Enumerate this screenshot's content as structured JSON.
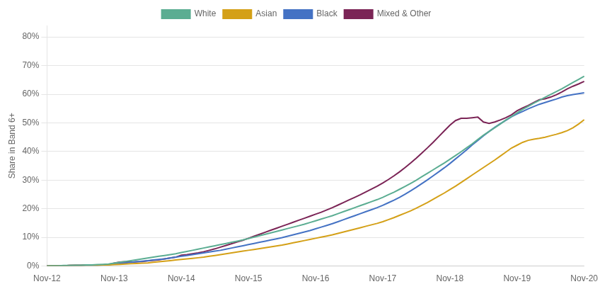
{
  "chart_data": {
    "type": "line",
    "ylabel": "Share in Band 6+",
    "categories": [
      "Nov-12",
      null,
      null,
      null,
      null,
      null,
      null,
      null,
      null,
      null,
      null,
      null,
      "Nov-13",
      null,
      null,
      null,
      null,
      null,
      null,
      null,
      null,
      null,
      null,
      null,
      "Nov-14",
      null,
      null,
      null,
      null,
      null,
      null,
      null,
      null,
      null,
      null,
      null,
      "Nov-15",
      null,
      null,
      null,
      null,
      null,
      null,
      null,
      null,
      null,
      null,
      null,
      "Nov-16",
      null,
      null,
      null,
      null,
      null,
      null,
      null,
      null,
      null,
      null,
      null,
      "Nov-17",
      null,
      null,
      null,
      null,
      null,
      null,
      null,
      null,
      null,
      null,
      null,
      "Nov-18",
      null,
      null,
      null,
      null,
      null,
      null,
      null,
      null,
      null,
      null,
      null,
      "Nov-19",
      null,
      null,
      null,
      null,
      null,
      null,
      null,
      null,
      null,
      null,
      null,
      "Nov-20"
    ],
    "ylim": [
      0,
      0.84
    ],
    "yticks": [
      {
        "value": 0.0,
        "label": "0%"
      },
      {
        "value": 0.1,
        "label": "10%"
      },
      {
        "value": 0.2,
        "label": "20%"
      },
      {
        "value": 0.3,
        "label": "30%"
      },
      {
        "value": 0.4,
        "label": "40%"
      },
      {
        "value": 0.5,
        "label": "50%"
      },
      {
        "value": 0.6,
        "label": "60%"
      },
      {
        "value": 0.7,
        "label": "70%"
      },
      {
        "value": 0.8,
        "label": "80%"
      }
    ],
    "grid": "y",
    "legend": "top",
    "series": [
      {
        "name": "White",
        "color": "#5BAD92",
        "values": [
          0.0,
          0.001,
          0.001,
          0.002,
          0.002,
          0.003,
          0.003,
          0.004,
          0.004,
          0.005,
          0.006,
          0.007,
          0.01,
          0.013,
          0.016,
          0.019,
          0.022,
          0.025,
          0.028,
          0.031,
          0.034,
          0.037,
          0.04,
          0.043,
          0.047,
          0.051,
          0.055,
          0.059,
          0.063,
          0.067,
          0.071,
          0.075,
          0.079,
          0.083,
          0.087,
          0.091,
          0.096,
          0.101,
          0.106,
          0.111,
          0.116,
          0.121,
          0.126,
          0.131,
          0.136,
          0.141,
          0.146,
          0.152,
          0.158,
          0.164,
          0.17,
          0.176,
          0.183,
          0.19,
          0.197,
          0.204,
          0.211,
          0.218,
          0.225,
          0.232,
          0.24,
          0.249,
          0.258,
          0.268,
          0.278,
          0.289,
          0.3,
          0.312,
          0.324,
          0.336,
          0.348,
          0.36,
          0.373,
          0.386,
          0.399,
          0.413,
          0.427,
          0.442,
          0.457,
          0.47,
          0.483,
          0.496,
          0.51,
          0.522,
          0.535,
          0.547,
          0.558,
          0.569,
          0.579,
          0.589,
          0.599,
          0.609,
          0.619,
          0.63,
          0.641,
          0.652,
          0.663
        ]
      },
      {
        "name": "Asian",
        "color": "#D4A017",
        "values": [
          0.0,
          0.001,
          0.001,
          0.001,
          0.002,
          0.002,
          0.002,
          0.003,
          0.003,
          0.003,
          0.004,
          0.004,
          0.005,
          0.006,
          0.007,
          0.008,
          0.009,
          0.01,
          0.011,
          0.013,
          0.015,
          0.017,
          0.019,
          0.021,
          0.023,
          0.025,
          0.027,
          0.029,
          0.031,
          0.034,
          0.037,
          0.04,
          0.043,
          0.046,
          0.049,
          0.052,
          0.055,
          0.058,
          0.061,
          0.064,
          0.067,
          0.07,
          0.073,
          0.077,
          0.081,
          0.085,
          0.089,
          0.093,
          0.097,
          0.101,
          0.105,
          0.109,
          0.114,
          0.119,
          0.124,
          0.129,
          0.134,
          0.139,
          0.144,
          0.149,
          0.155,
          0.162,
          0.169,
          0.177,
          0.185,
          0.193,
          0.202,
          0.212,
          0.222,
          0.233,
          0.244,
          0.255,
          0.267,
          0.279,
          0.292,
          0.305,
          0.318,
          0.331,
          0.344,
          0.357,
          0.37,
          0.384,
          0.398,
          0.412,
          0.422,
          0.432,
          0.439,
          0.443,
          0.446,
          0.45,
          0.455,
          0.46,
          0.466,
          0.473,
          0.483,
          0.496,
          0.511
        ]
      },
      {
        "name": "Black",
        "color": "#4472C4",
        "values": [
          0.0,
          0.001,
          0.001,
          0.001,
          0.002,
          0.002,
          0.002,
          0.003,
          0.003,
          0.003,
          0.004,
          0.005,
          0.007,
          0.009,
          0.011,
          0.013,
          0.015,
          0.017,
          0.019,
          0.021,
          0.023,
          0.025,
          0.028,
          0.031,
          0.034,
          0.037,
          0.04,
          0.043,
          0.046,
          0.049,
          0.052,
          0.055,
          0.059,
          0.063,
          0.067,
          0.071,
          0.075,
          0.079,
          0.083,
          0.087,
          0.091,
          0.095,
          0.099,
          0.104,
          0.109,
          0.114,
          0.119,
          0.124,
          0.13,
          0.136,
          0.142,
          0.148,
          0.155,
          0.162,
          0.169,
          0.176,
          0.183,
          0.19,
          0.197,
          0.204,
          0.212,
          0.221,
          0.23,
          0.24,
          0.251,
          0.263,
          0.275,
          0.288,
          0.301,
          0.315,
          0.329,
          0.343,
          0.358,
          0.374,
          0.39,
          0.406,
          0.423,
          0.439,
          0.455,
          0.47,
          0.484,
          0.497,
          0.509,
          0.521,
          0.531,
          0.54,
          0.549,
          0.557,
          0.565,
          0.571,
          0.577,
          0.583,
          0.59,
          0.595,
          0.599,
          0.602,
          0.605
        ]
      },
      {
        "name": "Mixed & Other",
        "color": "#7B2456",
        "values": [
          0.0,
          0.001,
          0.001,
          0.001,
          0.002,
          0.003,
          0.003,
          0.004,
          0.004,
          0.004,
          0.004,
          0.005,
          0.01,
          0.014,
          0.015,
          0.013,
          0.015,
          0.016,
          0.018,
          0.02,
          0.022,
          0.025,
          0.028,
          0.031,
          0.038,
          0.04,
          0.043,
          0.046,
          0.05,
          0.055,
          0.06,
          0.066,
          0.072,
          0.078,
          0.084,
          0.09,
          0.097,
          0.104,
          0.111,
          0.118,
          0.125,
          0.132,
          0.139,
          0.146,
          0.153,
          0.16,
          0.167,
          0.174,
          0.181,
          0.188,
          0.196,
          0.204,
          0.213,
          0.222,
          0.231,
          0.24,
          0.249,
          0.259,
          0.269,
          0.279,
          0.29,
          0.302,
          0.315,
          0.329,
          0.344,
          0.36,
          0.377,
          0.395,
          0.413,
          0.432,
          0.452,
          0.472,
          0.492,
          0.508,
          0.516,
          0.516,
          0.518,
          0.52,
          0.503,
          0.498,
          0.503,
          0.51,
          0.518,
          0.528,
          0.542,
          0.552,
          0.561,
          0.571,
          0.581,
          0.584,
          0.59,
          0.598,
          0.608,
          0.619,
          0.628,
          0.636,
          0.645
        ]
      }
    ]
  }
}
